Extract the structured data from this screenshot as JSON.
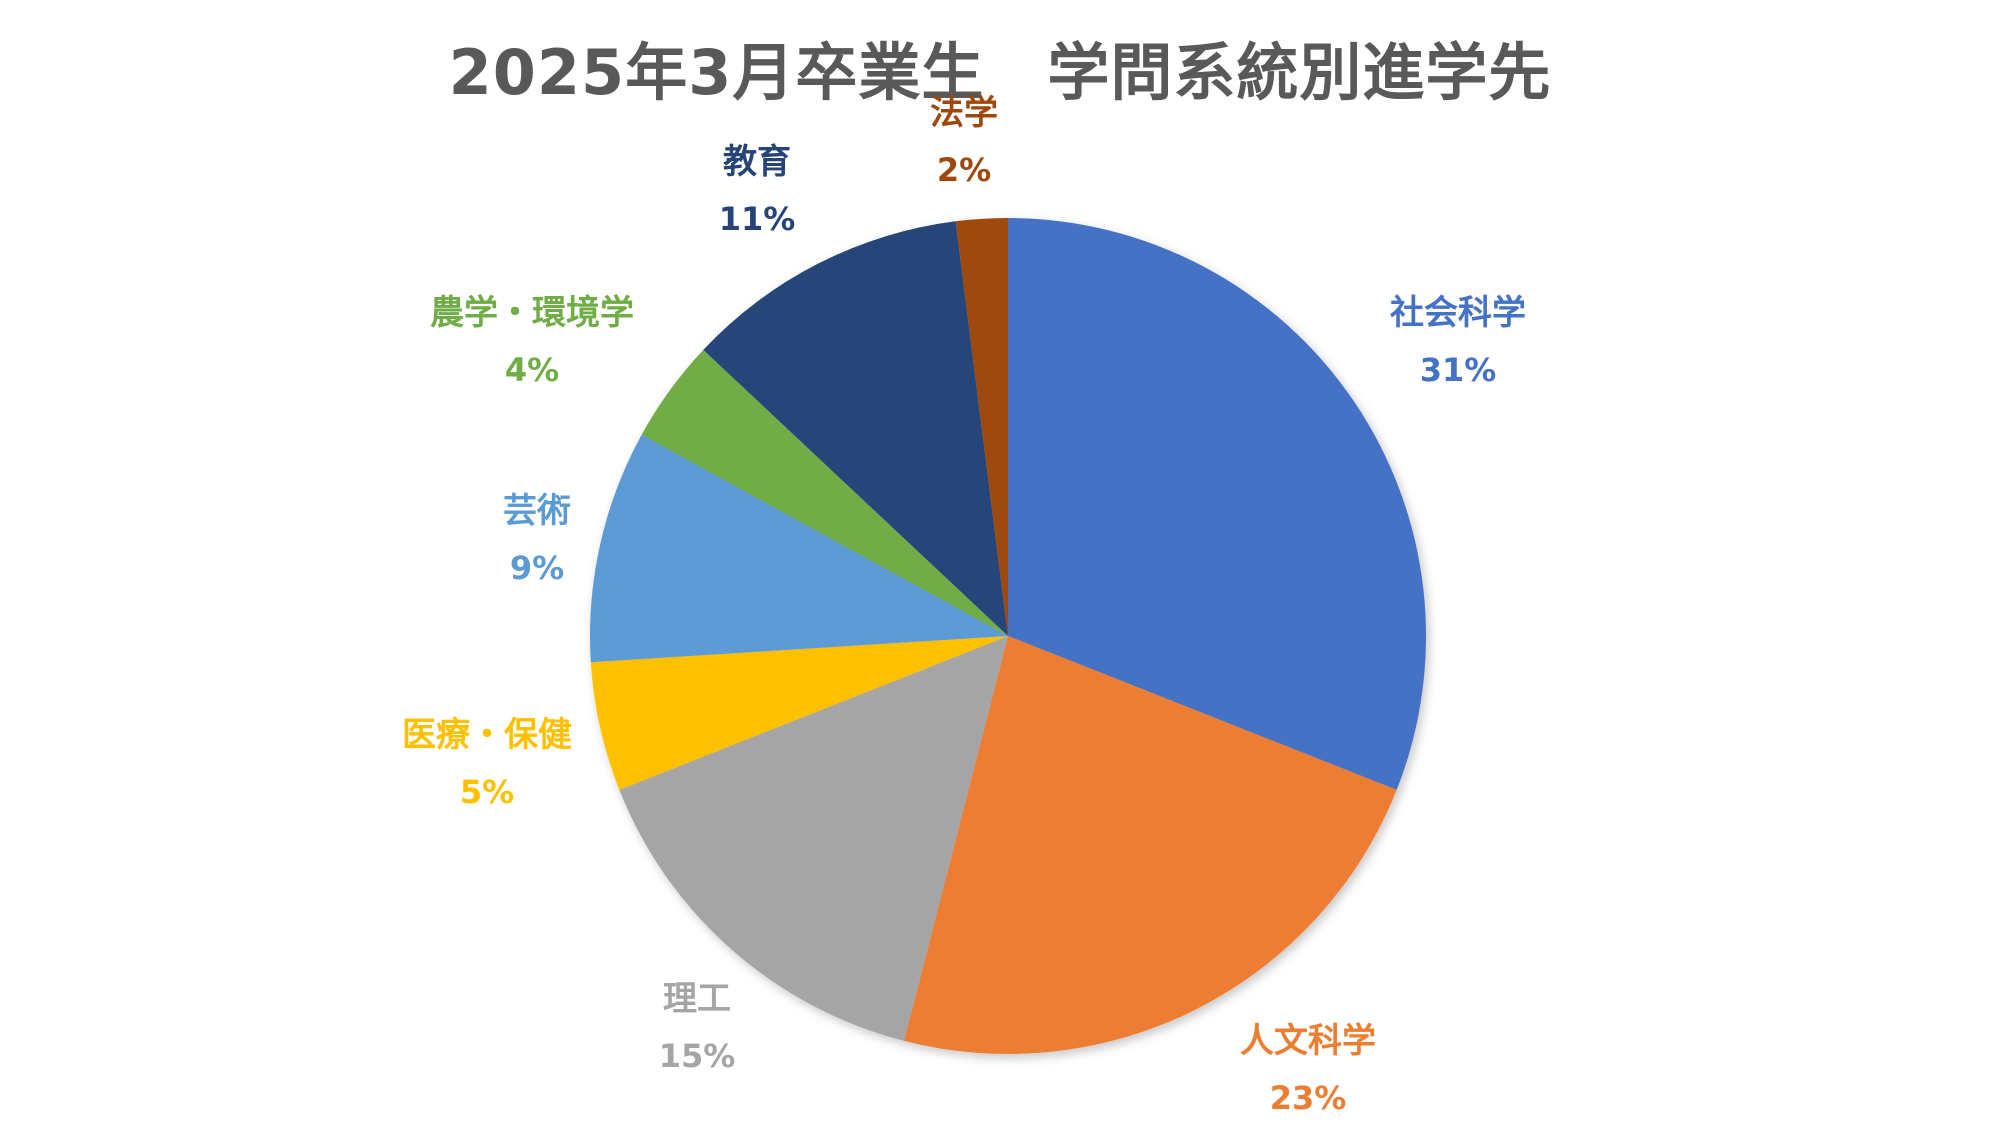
{
  "chart_data": {
    "type": "pie",
    "title": "2025年3月卒業生　学問系統別進学先",
    "start_angle_deg": 0,
    "direction": "clockwise",
    "slices": [
      {
        "name": "社会科学",
        "value": 31,
        "label": "31%",
        "color": "#4472C4"
      },
      {
        "name": "人文科学",
        "value": 23,
        "label": "23%",
        "color": "#ED7D31"
      },
      {
        "name": "理工",
        "value": 15,
        "label": "15%",
        "color": "#A5A5A5"
      },
      {
        "name": "医療・保健",
        "value": 5,
        "label": "5%",
        "color": "#FFC000"
      },
      {
        "name": "芸術",
        "value": 9,
        "label": "9%",
        "color": "#5B9BD5"
      },
      {
        "name": "農学・環境学",
        "value": 4,
        "label": "4%",
        "color": "#70AD47"
      },
      {
        "name": "教育",
        "value": 11,
        "label": "11%",
        "color": "#264478"
      },
      {
        "name": "法学",
        "value": 2,
        "label": "2%",
        "color": "#9E480E"
      }
    ]
  }
}
